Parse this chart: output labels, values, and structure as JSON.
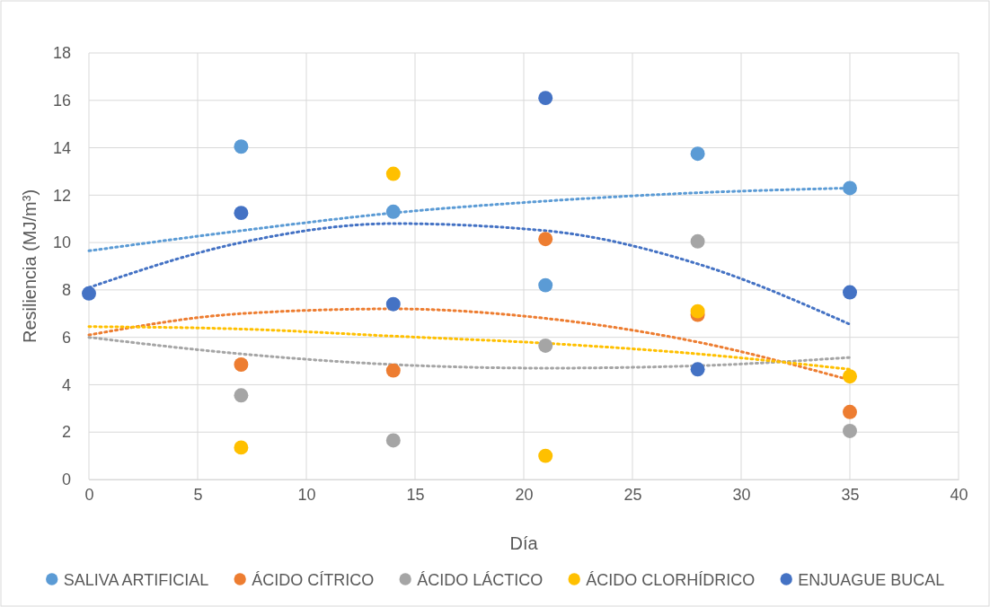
{
  "chart_data": {
    "type": "scatter",
    "xlabel": "Día",
    "ylabel": "Resiliencia (MJ/m³)",
    "xlim": [
      0,
      40
    ],
    "xticks": [
      0,
      5,
      10,
      15,
      20,
      25,
      30,
      35,
      40
    ],
    "ylim": [
      0,
      18
    ],
    "yticks": [
      0,
      2,
      4,
      6,
      8,
      10,
      12,
      14,
      16,
      18
    ],
    "grid": true,
    "legend": "bottom",
    "marker": "circle",
    "x": [
      0,
      7,
      14,
      21,
      28,
      35
    ],
    "series": [
      {
        "name": "SALIVA ARTIFICIAL",
        "color": "#5b9bd5",
        "values": [
          null,
          14.05,
          11.3,
          8.2,
          13.75,
          12.3
        ]
      },
      {
        "name": "ÁCIDO CÍTRICO",
        "color": "#ed7d31",
        "values": [
          null,
          4.85,
          4.6,
          10.15,
          6.95,
          2.85
        ]
      },
      {
        "name": "ÁCIDO LÁCTICO",
        "color": "#a5a5a5",
        "values": [
          null,
          3.55,
          1.65,
          5.65,
          10.05,
          2.05
        ]
      },
      {
        "name": "ÁCIDO CLORHÍDRICO",
        "color": "#ffc000",
        "values": [
          null,
          1.35,
          12.9,
          1.0,
          7.1,
          4.35
        ]
      },
      {
        "name": "ENJUAGUE BUCAL",
        "color": "#4472c4",
        "values": [
          7.85,
          11.25,
          7.4,
          16.1,
          4.65,
          7.9
        ]
      },
      {
        "type": "line",
        "marker": "none",
        "line_style": "dotted",
        "color": "#5b9bd5",
        "x": [
          0,
          7,
          14,
          21,
          28,
          35
        ],
        "values": [
          9.65,
          10.5,
          11.25,
          11.75,
          12.1,
          12.3
        ]
      },
      {
        "type": "line",
        "marker": "none",
        "line_style": "dotted",
        "color": "#ed7d31",
        "x": [
          0,
          7,
          14,
          21,
          28,
          35
        ],
        "values": [
          6.1,
          7.0,
          7.2,
          6.8,
          5.8,
          4.2
        ]
      },
      {
        "type": "line",
        "marker": "none",
        "line_style": "dotted",
        "color": "#a5a5a5",
        "x": [
          0,
          7,
          14,
          21,
          28,
          35
        ],
        "values": [
          6.0,
          5.3,
          4.85,
          4.7,
          4.8,
          5.15
        ]
      },
      {
        "type": "line",
        "marker": "none",
        "line_style": "dotted",
        "color": "#ffc000",
        "x": [
          0,
          7,
          14,
          21,
          28,
          35
        ],
        "values": [
          6.45,
          6.35,
          6.05,
          5.75,
          5.3,
          4.65
        ]
      },
      {
        "type": "line",
        "marker": "none",
        "line_style": "dotted",
        "color": "#4472c4",
        "x": [
          0,
          7,
          14,
          21,
          28,
          35
        ],
        "values": [
          8.1,
          10.0,
          10.8,
          10.5,
          9.1,
          6.55
        ]
      }
    ]
  }
}
